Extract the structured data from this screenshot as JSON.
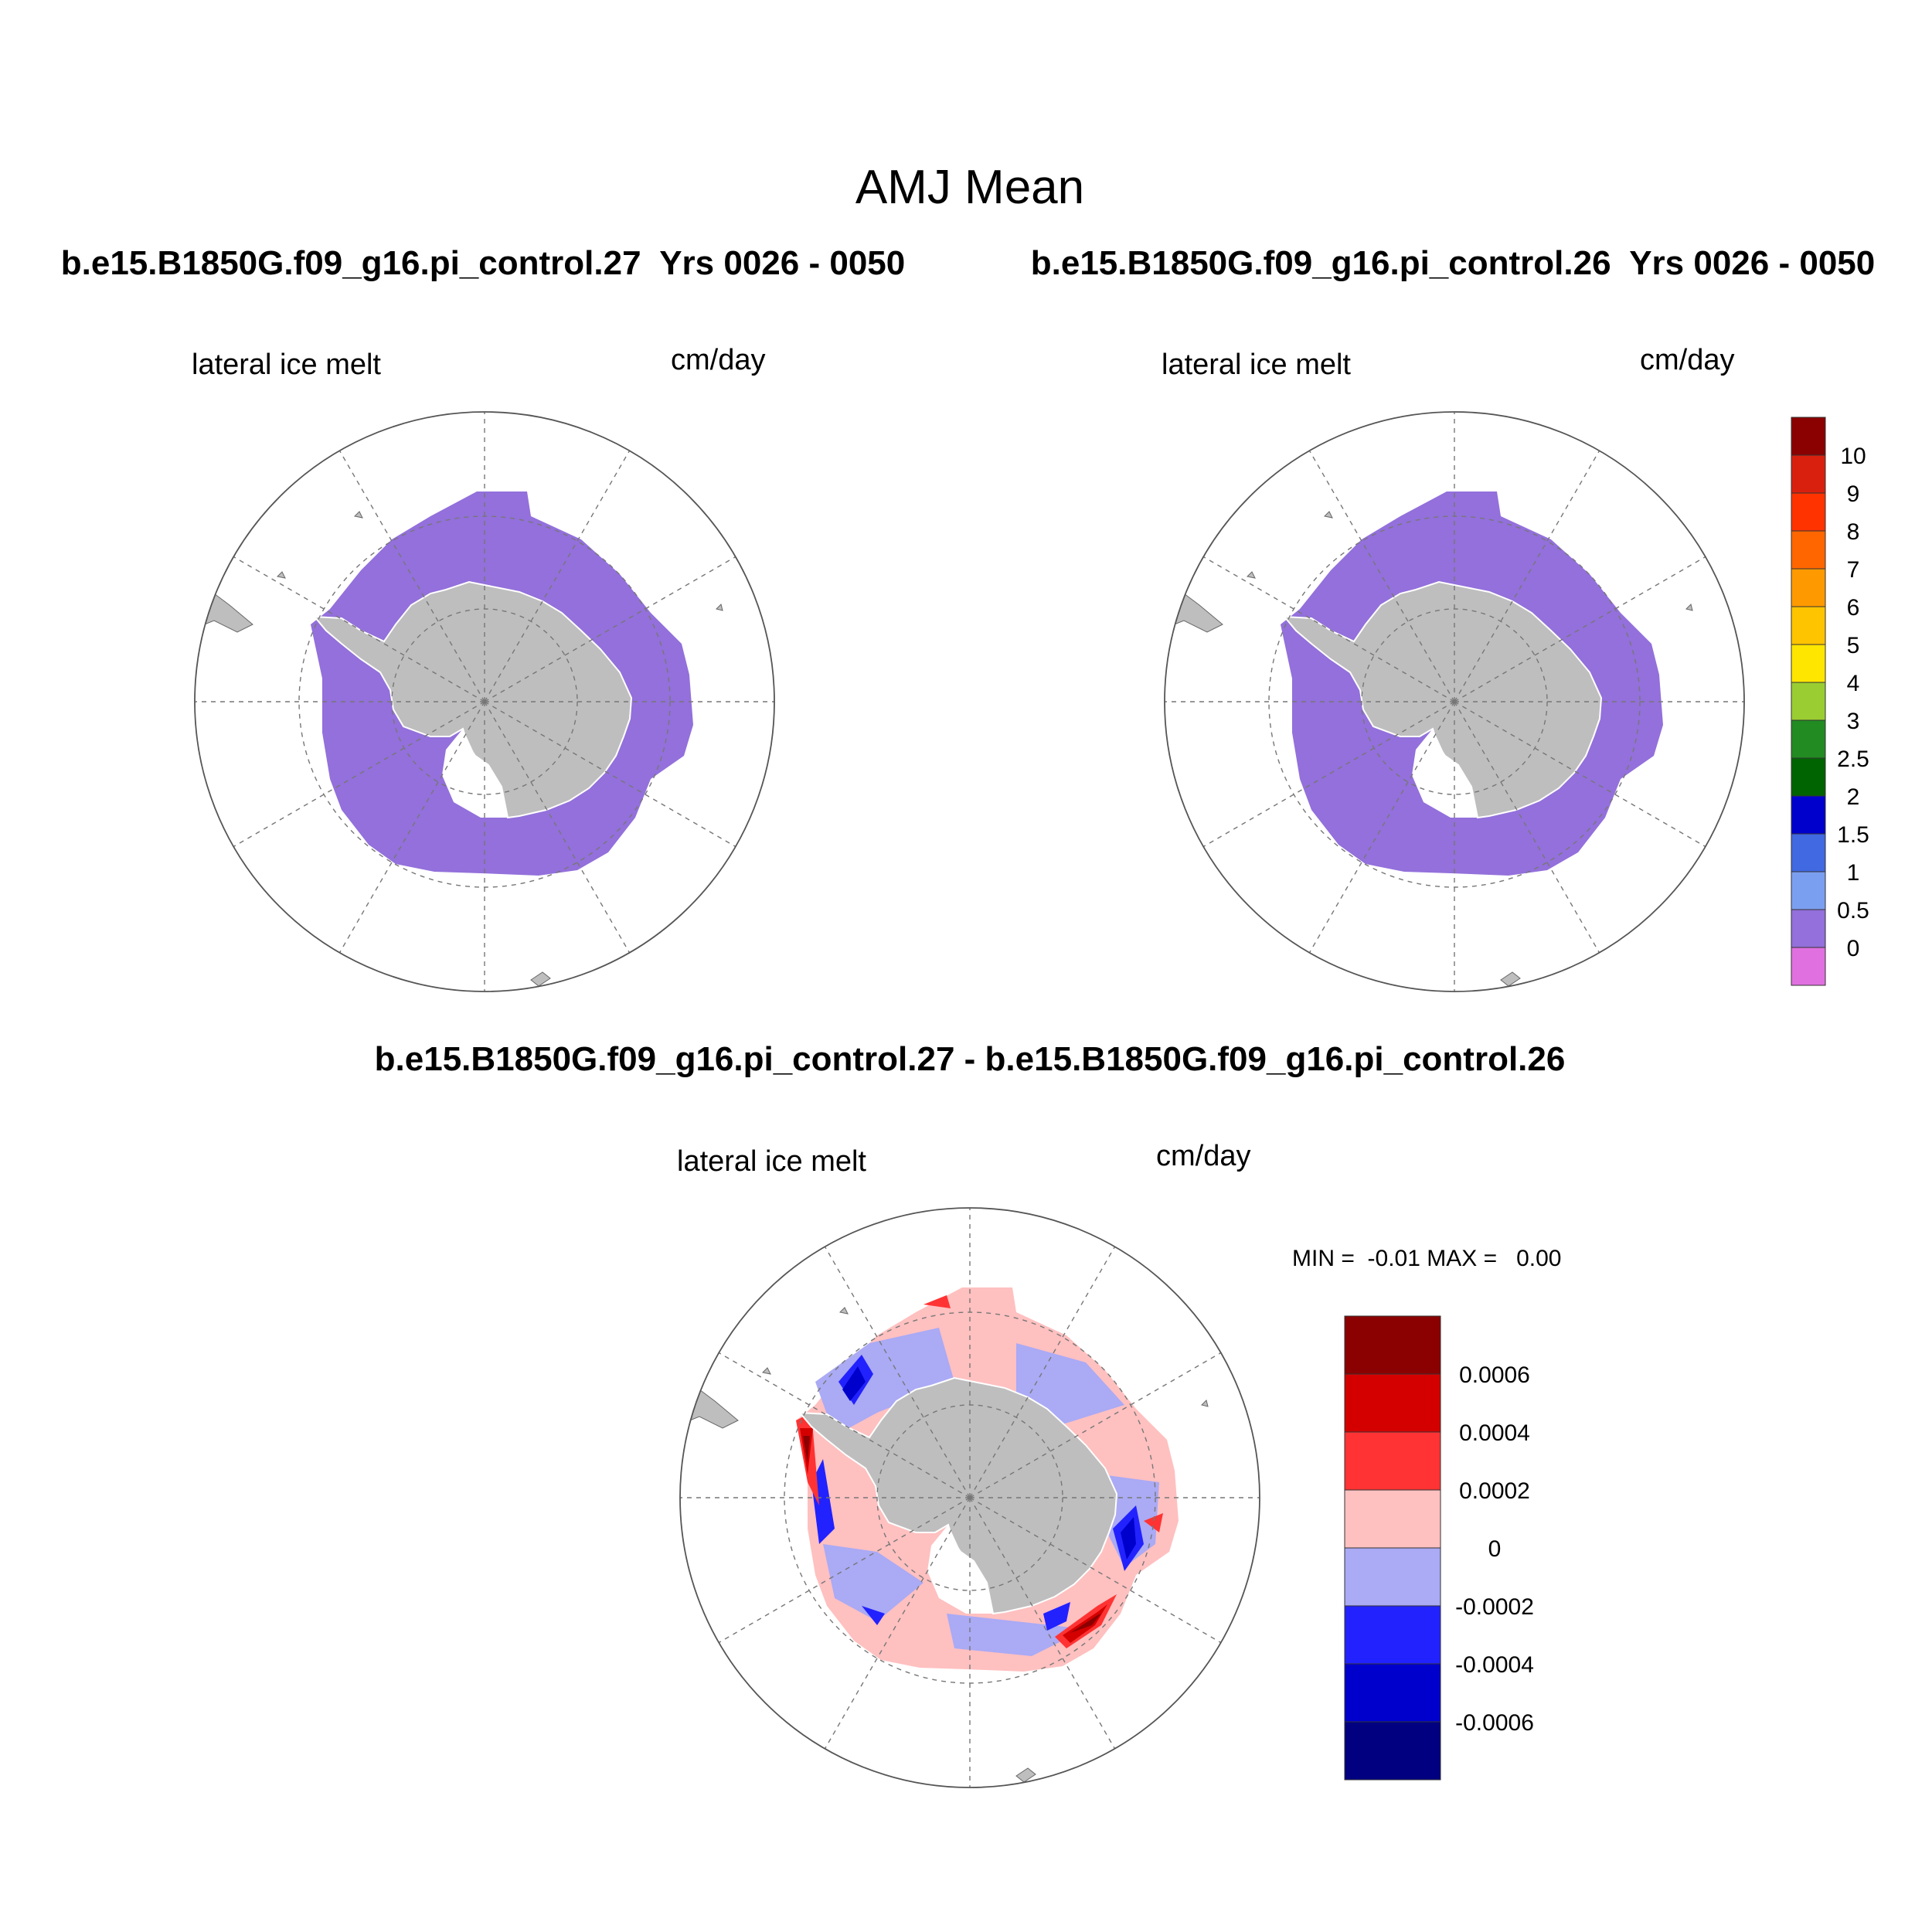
{
  "chart_data": {
    "type": "heatmap",
    "title": "AMJ Mean",
    "panels": [
      {
        "id": "panel-a",
        "case": "b.e15.B1850G.f09_g16.pi_control.27",
        "years": "Yrs 0026 - 0050",
        "heading": "b.e15.B1850G.f09_g16.pi_control.27  Yrs 0026 - 0050",
        "variable": "lateral ice melt",
        "units": "cm/day",
        "projection": "south polar stereographic",
        "field_level": "0 - 0.5"
      },
      {
        "id": "panel-b",
        "case": "b.e15.B1850G.f09_g16.pi_control.26",
        "years": "Yrs 0026 - 0050",
        "heading": "b.e15.B1850G.f09_g16.pi_control.26  Yrs 0026 - 0050",
        "variable": "lateral ice melt",
        "units": "cm/day",
        "projection": "south polar stereographic",
        "field_level": "0 - 0.5"
      },
      {
        "id": "panel-diff",
        "heading": "b.e15.B1850G.f09_g16.pi_control.27 - b.e15.B1850G.f09_g16.pi_control.26",
        "variable": "lateral ice melt",
        "units": "cm/day",
        "projection": "south polar stereographic",
        "stats": "MIN =  -0.01 MAX =   0.00",
        "min": -0.01,
        "max": 0.0
      }
    ],
    "colorbar_main": {
      "labels": [
        "10",
        "9",
        "8",
        "7",
        "6",
        "5",
        "4",
        "3",
        "2.5",
        "2",
        "1.5",
        "1",
        "0.5",
        "0"
      ],
      "colors": [
        "#8b0000",
        "#d9200f",
        "#ff3300",
        "#ff6600",
        "#ff9900",
        "#ffc400",
        "#ffe600",
        "#9acd32",
        "#228b22",
        "#006400",
        "#0000cd",
        "#4169e1",
        "#7b9ff0",
        "#9370db",
        "#e070e0"
      ]
    },
    "colorbar_diff": {
      "labels": [
        "0.0006",
        "0.0004",
        "0.0002",
        "0",
        "-0.0002",
        "-0.0004",
        "-0.0006"
      ],
      "colors": [
        "#8b0000",
        "#d40000",
        "#ff3333",
        "#ffc0c0",
        "#aaaaf5",
        "#2222ff",
        "#0000cc",
        "#000080"
      ]
    },
    "colors": {
      "land": "#bebebe",
      "sea_ice_field": "#9370db"
    }
  }
}
